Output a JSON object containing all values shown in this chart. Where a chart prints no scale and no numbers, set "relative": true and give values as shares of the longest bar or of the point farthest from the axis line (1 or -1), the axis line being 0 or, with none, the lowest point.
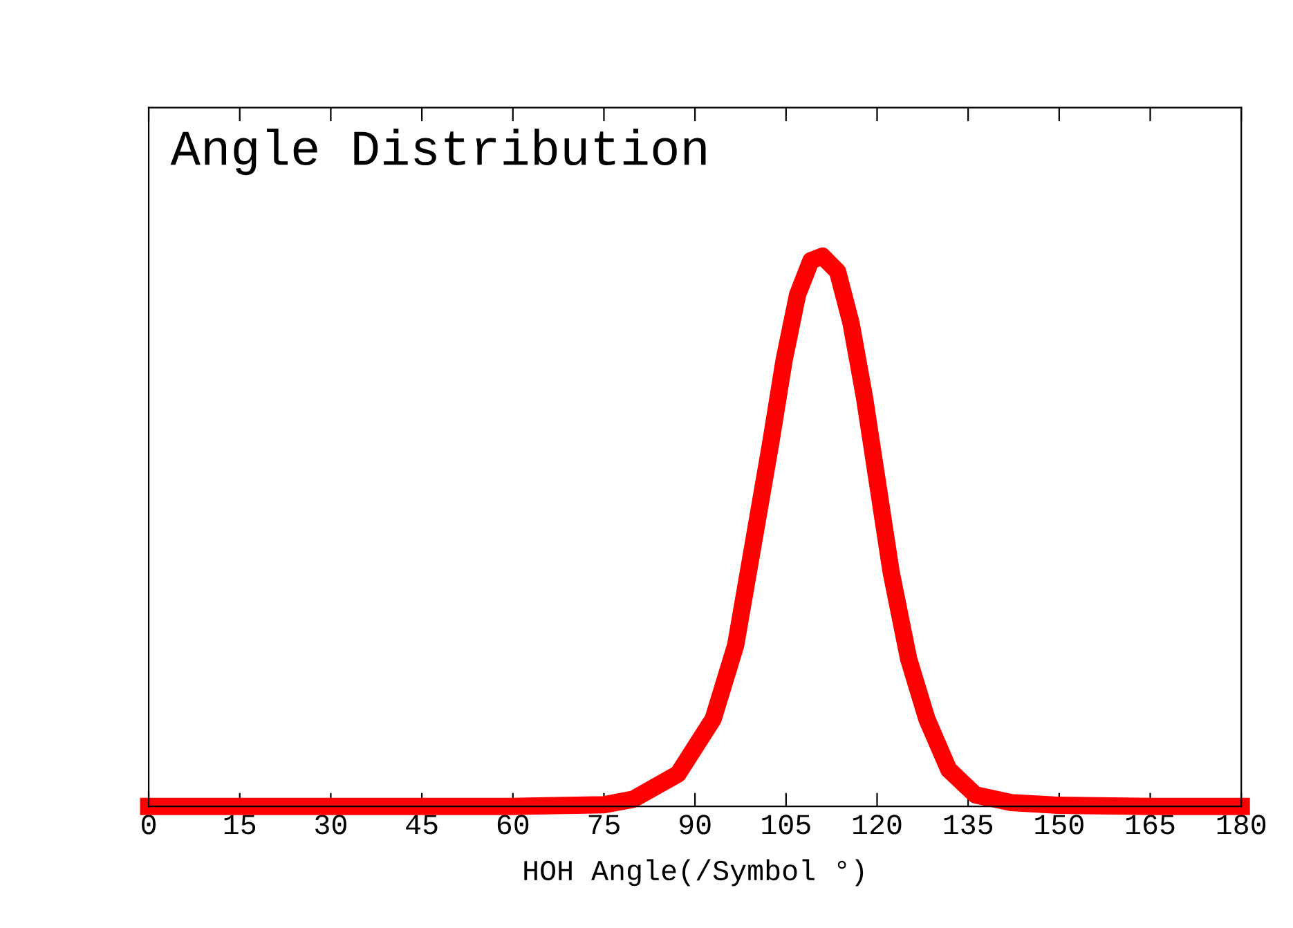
{
  "chart_data": {
    "type": "line",
    "title": "Angle Distribution",
    "xlabel": "HOH Angle(/Symbol °)",
    "relative": true,
    "x": [
      0,
      30,
      60,
      75,
      79.8,
      87.2,
      93.0,
      96.7,
      99.6,
      102.5,
      104.7,
      106.9,
      109.1,
      111.0,
      113.5,
      115.7,
      117.9,
      120.1,
      122.3,
      125.2,
      128.2,
      131.8,
      136.2,
      142.1,
      150,
      165,
      180
    ],
    "series": [
      {
        "color": "#ff0000",
        "values": [
          0,
          0,
          0,
          0.003,
          0.013,
          0.059,
          0.159,
          0.293,
          0.477,
          0.662,
          0.812,
          0.93,
          0.992,
          1.0,
          0.972,
          0.879,
          0.745,
          0.586,
          0.427,
          0.268,
          0.159,
          0.067,
          0.021,
          0.007,
          0.002,
          0,
          0
        ]
      }
    ],
    "xlim": [
      0,
      180
    ],
    "xticks": [
      0,
      15,
      30,
      45,
      60,
      75,
      90,
      105,
      120,
      135,
      150,
      165,
      180
    ],
    "grid": false,
    "line_style": "solid",
    "tick_labels": "x"
  }
}
